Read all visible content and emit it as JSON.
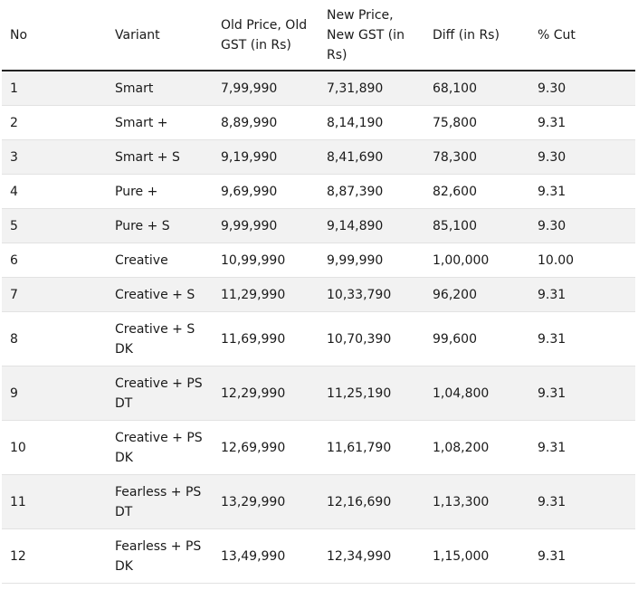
{
  "headers": [
    "No",
    "Variant",
    "Old Price, Old GST (in Rs)",
    "New Price, New GST (in Rs)",
    "Diff (in Rs)",
    "% Cut"
  ],
  "rows": [
    [
      "1",
      "Smart",
      "7,99,990",
      "7,31,890",
      "68,100",
      "9.30"
    ],
    [
      "2",
      "Smart +",
      "8,89,990",
      "8,14,190",
      "75,800",
      "9.31"
    ],
    [
      "3",
      "Smart + S",
      "9,19,990",
      "8,41,690",
      "78,300",
      "9.30"
    ],
    [
      "4",
      "Pure +",
      "9,69,990",
      "8,87,390",
      "82,600",
      "9.31"
    ],
    [
      "5",
      "Pure + S",
      "9,99,990",
      "9,14,890",
      "85,100",
      "9.30"
    ],
    [
      "6",
      "Creative",
      "10,99,990",
      "9,99,990",
      "1,00,000",
      "10.00"
    ],
    [
      "7",
      "Creative + S",
      "11,29,990",
      "10,33,790",
      "96,200",
      "9.31"
    ],
    [
      "8",
      "Creative + S DK",
      "11,69,990",
      "10,70,390",
      "99,600",
      "9.31"
    ],
    [
      "9",
      "Creative + PS DT",
      "12,29,990",
      "11,25,190",
      "1,04,800",
      "9.31"
    ],
    [
      "10",
      "Creative + PS DK",
      "12,69,990",
      "11,61,790",
      "1,08,200",
      "9.31"
    ],
    [
      "11",
      "Fearless + PS DT",
      "13,29,990",
      "12,16,690",
      "1,13,300",
      "9.31"
    ],
    [
      "12",
      "Fearless + PS DK",
      "13,49,990",
      "12,34,990",
      "1,15,000",
      "9.31"
    ]
  ]
}
